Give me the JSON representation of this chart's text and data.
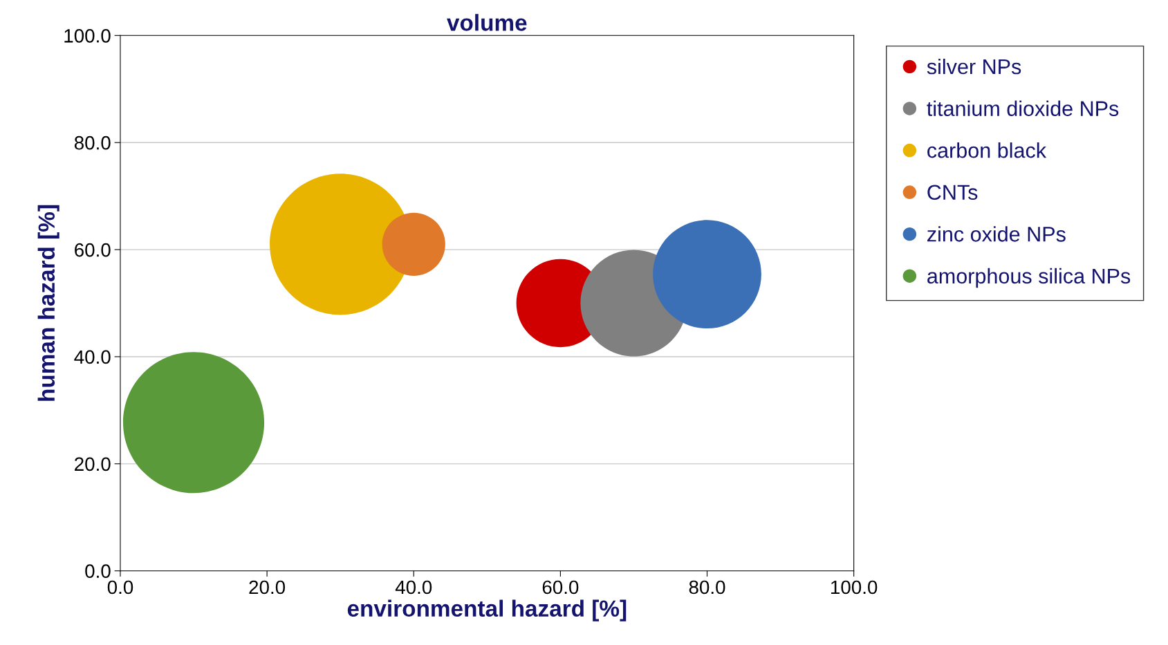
{
  "chart_data": {
    "type": "bubble",
    "title": "volume",
    "xlabel": "environmental hazard [%]",
    "ylabel": "human hazard [%]",
    "xlim": [
      0,
      100
    ],
    "ylim": [
      0,
      100
    ],
    "xticks": [
      {
        "value": 0,
        "label": "0.0"
      },
      {
        "value": 20,
        "label": "20.0"
      },
      {
        "value": 40,
        "label": "40.0"
      },
      {
        "value": 60,
        "label": "60.0"
      },
      {
        "value": 80,
        "label": "80.0"
      },
      {
        "value": 100,
        "label": "100.0"
      }
    ],
    "yticks": [
      {
        "value": 0,
        "label": "0.0"
      },
      {
        "value": 20,
        "label": "20.0"
      },
      {
        "value": 40,
        "label": "40.0"
      },
      {
        "value": 60,
        "label": "60.0"
      },
      {
        "value": 80,
        "label": "80.0"
      },
      {
        "value": 100,
        "label": "100.0"
      }
    ],
    "grid": "y",
    "legend": "right",
    "series": [
      {
        "name": "silver NPs",
        "color": "#d10000",
        "x": [
          60
        ],
        "values": [
          50
        ],
        "sizes": [
          0.39
        ]
      },
      {
        "name": "titanium dioxide NPs",
        "color": "#808080",
        "x": [
          70
        ],
        "values": [
          50
        ],
        "sizes": [
          0.57
        ]
      },
      {
        "name": "carbon black",
        "color": "#e8b400",
        "x": [
          30
        ],
        "values": [
          61
        ],
        "sizes": [
          1.0
        ]
      },
      {
        "name": "CNTs",
        "color": "#e07a2a",
        "x": [
          40
        ],
        "values": [
          61
        ],
        "sizes": [
          0.2
        ]
      },
      {
        "name": "zinc oxide NPs",
        "color": "#3b6fb6",
        "x": [
          80
        ],
        "values": [
          55.4
        ],
        "sizes": [
          0.59
        ]
      },
      {
        "name": "amorphous silica NPs",
        "color": "#5a9a3a",
        "x": [
          10
        ],
        "values": [
          27.7
        ],
        "sizes": [
          1.0
        ]
      }
    ]
  }
}
